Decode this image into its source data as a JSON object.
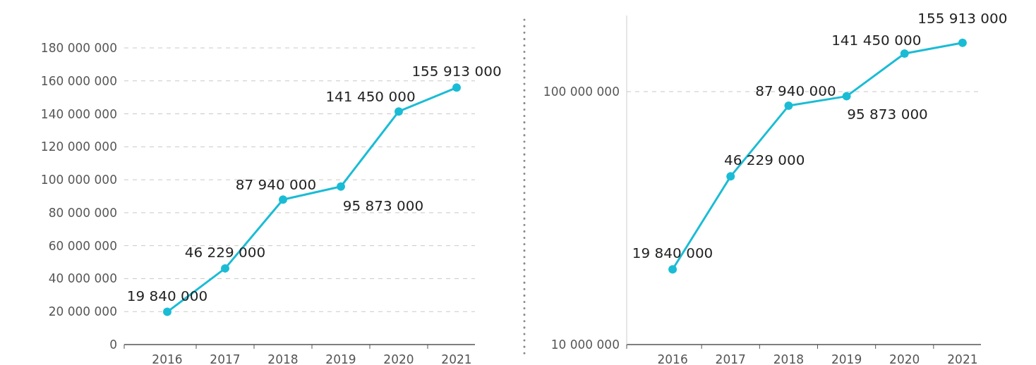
{
  "chart_data": [
    {
      "type": "line",
      "categories": [
        "2016",
        "2017",
        "2018",
        "2019",
        "2020",
        "2021"
      ],
      "series": [
        {
          "color": "#1abcd5",
          "values": [
            19840000,
            46229000,
            87940000,
            95873000,
            141450000,
            155913000
          ],
          "value_labels": [
            "19 840 000",
            "46 229 000",
            "87 940 000",
            "95 873 000",
            "141 450 000",
            "155 913 000"
          ]
        }
      ],
      "ylim": [
        0,
        180000000
      ],
      "yticks": [
        0,
        {
          "value": 20000000,
          "label": "20 000 000"
        },
        {
          "value": 40000000,
          "label": "40 000 000"
        },
        {
          "value": 60000000,
          "label": "60 000 000"
        },
        {
          "value": 80000000,
          "label": "80 000 000"
        },
        {
          "value": 100000000,
          "label": "100 000 000"
        },
        {
          "value": 120000000,
          "label": "120 000 000"
        },
        {
          "value": 140000000,
          "label": "140 000 000"
        },
        {
          "value": 160000000,
          "label": "160 000 000"
        },
        {
          "value": 180000000,
          "label": "180 000 000"
        }
      ],
      "grid": "y",
      "marker": "circle",
      "line_style": "solid"
    },
    {
      "type": "line",
      "categories": [
        "2016",
        "2017",
        "2018",
        "2019",
        "2020",
        "2021"
      ],
      "series": [
        {
          "color": "#1abcd5",
          "values": [
            19840000,
            46229000,
            87940000,
            95873000,
            141450000,
            155913000
          ],
          "value_labels": [
            "19 840 000",
            "46 229 000",
            "87 940 000",
            "95 873 000",
            "141 450 000",
            "155 913 000"
          ]
        }
      ],
      "log": "y",
      "ylim": [
        10000000,
        200000000
      ],
      "yticks": [
        {
          "value": 10000000,
          "label": "10 000 000"
        },
        {
          "value": 100000000,
          "label": "100 000 000"
        }
      ],
      "grid": "y",
      "marker": "circle",
      "line_style": "solid"
    }
  ]
}
